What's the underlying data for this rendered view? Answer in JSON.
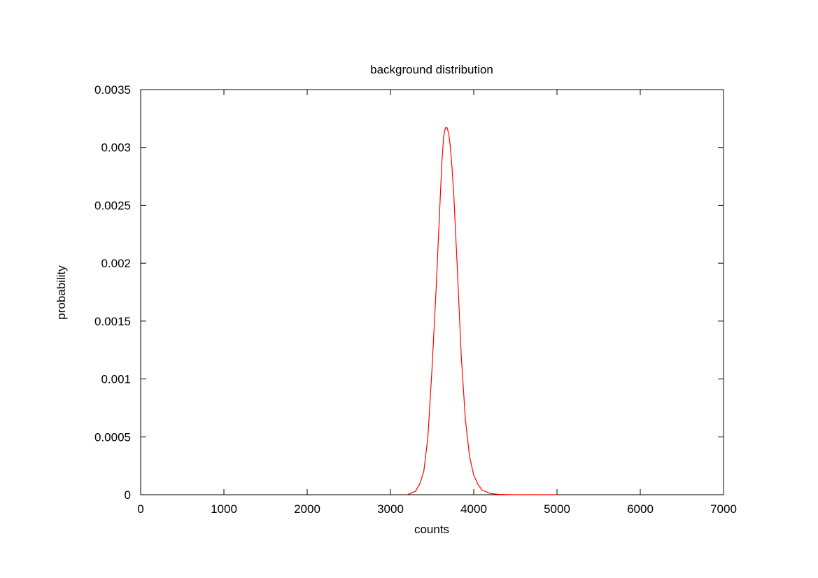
{
  "chart_data": {
    "type": "line",
    "title": "background distribution",
    "xlabel": "counts",
    "ylabel": "probability",
    "xlim": [
      0,
      7000
    ],
    "ylim": [
      0,
      0.0035
    ],
    "xticks": [
      "0",
      "1000",
      "2000",
      "3000",
      "4000",
      "5000",
      "6000",
      "7000"
    ],
    "yticks": [
      "0",
      "0.0005",
      "0.001",
      "0.0015",
      "0.002",
      "0.0025",
      "0.003",
      "0.0035"
    ],
    "grid": false,
    "legend": "none",
    "series": [
      {
        "color": "#ff0000",
        "x": [
          3200,
          3300,
          3350,
          3400,
          3450,
          3500,
          3550,
          3600,
          3620,
          3640,
          3660,
          3680,
          3700,
          3720,
          3740,
          3760,
          3800,
          3850,
          3900,
          3950,
          4000,
          4050,
          4100,
          4200,
          4300,
          4500,
          5000
        ],
        "y": [
          0.0,
          3e-05,
          9e-05,
          0.0002,
          0.0005,
          0.0011,
          0.0018,
          0.0026,
          0.0029,
          0.0031,
          0.00317,
          0.00317,
          0.00312,
          0.003,
          0.00282,
          0.0026,
          0.002,
          0.0012,
          0.00065,
          0.00033,
          0.00017,
          9e-05,
          4e-05,
          1e-05,
          3e-06,
          0.0,
          0.0
        ]
      }
    ]
  }
}
